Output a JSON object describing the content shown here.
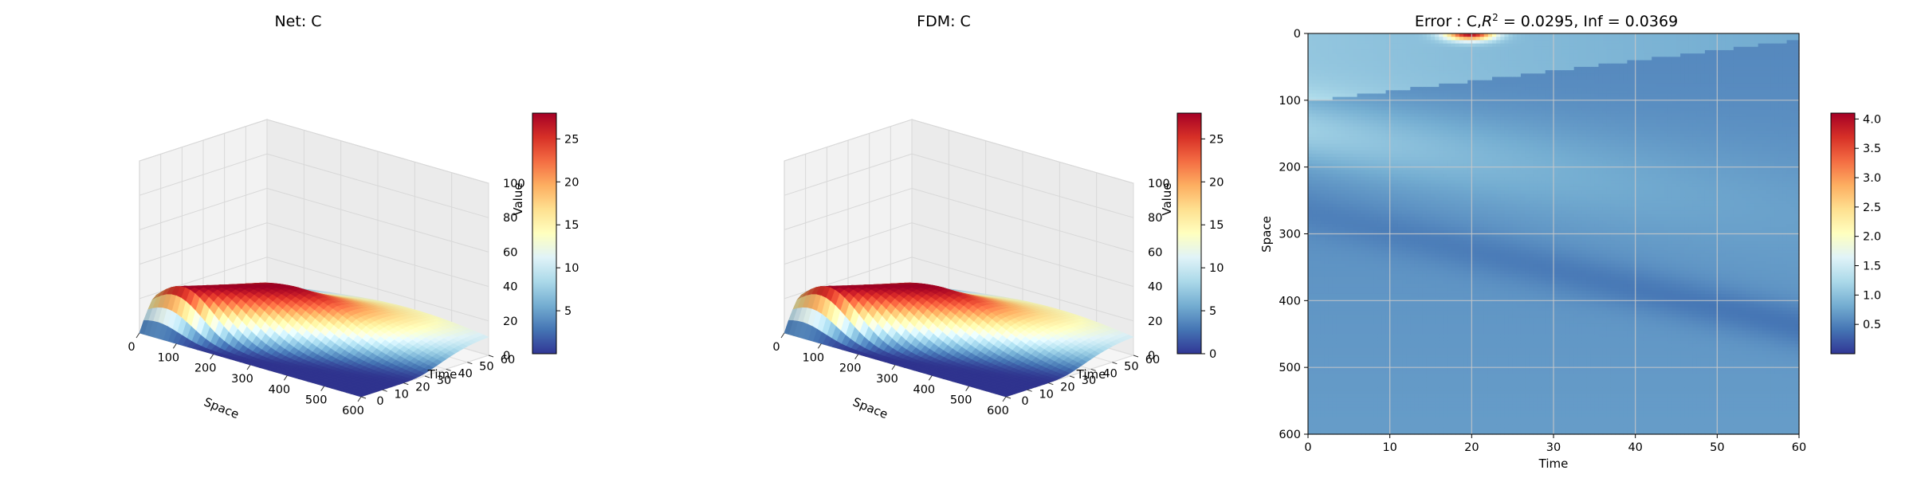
{
  "figure": {
    "background": "#ffffff"
  },
  "chart_data": [
    {
      "type": "surface",
      "title": "Net: C",
      "xlabel": "Space",
      "ylabel": "Time",
      "zlabel": "",
      "xticks": [
        "0",
        "100",
        "200",
        "300",
        "400",
        "500",
        "600"
      ],
      "yticks": [
        "0",
        "10",
        "20",
        "30",
        "40",
        "50",
        "60"
      ],
      "zticks": [
        "0",
        "20",
        "40",
        "60",
        "80",
        "100"
      ],
      "xlim": [
        0,
        600
      ],
      "ylim": [
        0,
        60
      ],
      "zlim": [
        0,
        100
      ],
      "z_peak": 28,
      "colormap": "RdYlBu_r",
      "colorbar": {
        "label": "Value",
        "ticks": [
          "5",
          "10",
          "15",
          "20",
          "25"
        ],
        "range": [
          0,
          28
        ]
      }
    },
    {
      "type": "surface",
      "title": "FDM: C",
      "xlabel": "Space",
      "ylabel": "Time",
      "zlabel": "",
      "xticks": [
        "0",
        "100",
        "200",
        "300",
        "400",
        "500",
        "600"
      ],
      "yticks": [
        "0",
        "10",
        "20",
        "30",
        "40",
        "50",
        "60"
      ],
      "zticks": [
        "0",
        "20",
        "40",
        "60",
        "80",
        "100"
      ],
      "xlim": [
        0,
        600
      ],
      "ylim": [
        0,
        60
      ],
      "zlim": [
        0,
        100
      ],
      "z_peak": 28,
      "colormap": "RdYlBu_r",
      "colorbar": {
        "label": "Value",
        "ticks": [
          "0",
          "5",
          "10",
          "15",
          "20",
          "25"
        ],
        "range": [
          0,
          28
        ]
      }
    },
    {
      "type": "heatmap",
      "title_prefix": "Error : C,",
      "title_r2_symbol": "R",
      "title_r2_sup": "2",
      "title_r2_value": " = 0.0295, Inf = 0.0369",
      "xlabel": "Time",
      "ylabel": "Space",
      "xticks": [
        "0",
        "10",
        "20",
        "30",
        "40",
        "50",
        "60"
      ],
      "yticks": [
        "0",
        "100",
        "200",
        "300",
        "400",
        "500",
        "600"
      ],
      "xlim": [
        0,
        60
      ],
      "ylim": [
        0,
        600
      ],
      "grid": true,
      "colormap": "RdYlBu_r",
      "colorbar": {
        "label": "",
        "ticks": [
          "0.5",
          "1.0",
          "1.5",
          "2.0",
          "2.5",
          "3.0",
          "3.5",
          "4.0"
        ],
        "range": [
          0,
          4.1
        ]
      }
    }
  ]
}
